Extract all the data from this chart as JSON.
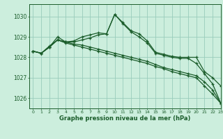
{
  "title": "Graphe pression niveau de la mer (hPa)",
  "bg_color": "#cceedd",
  "grid_color": "#99ccbb",
  "line_color": "#1a5c2a",
  "xlim": [
    -0.5,
    23
  ],
  "ylim": [
    1025.5,
    1030.6
  ],
  "yticks": [
    1026,
    1027,
    1028,
    1029,
    1030
  ],
  "xticks": [
    0,
    1,
    2,
    3,
    4,
    5,
    6,
    7,
    8,
    9,
    10,
    11,
    12,
    13,
    14,
    15,
    16,
    17,
    18,
    19,
    20,
    21,
    22,
    23
  ],
  "series": [
    [
      1028.3,
      1028.2,
      1028.5,
      1029.0,
      1028.75,
      1028.8,
      1029.0,
      1029.1,
      1029.2,
      1029.15,
      1030.1,
      1029.7,
      1029.3,
      1029.15,
      1028.8,
      1028.25,
      1028.15,
      1028.05,
      1028.0,
      1028.0,
      1028.0,
      1027.3,
      1027.0,
      1026.6
    ],
    [
      1028.3,
      1028.2,
      1028.55,
      1028.85,
      1028.75,
      1028.75,
      1028.85,
      1028.95,
      1029.1,
      1029.15,
      1030.1,
      1029.65,
      1029.25,
      1029.0,
      1028.7,
      1028.2,
      1028.1,
      1028.0,
      1027.95,
      1027.95,
      1027.7,
      1027.2,
      1026.7,
      1025.75
    ],
    [
      1028.3,
      1028.2,
      1028.5,
      1028.85,
      1028.75,
      1028.65,
      1028.6,
      1028.5,
      1028.4,
      1028.3,
      1028.2,
      1028.1,
      1028.0,
      1027.9,
      1027.8,
      1027.65,
      1027.5,
      1027.4,
      1027.3,
      1027.2,
      1027.1,
      1026.8,
      1026.4,
      1025.75
    ],
    [
      1028.3,
      1028.2,
      1028.5,
      1028.85,
      1028.7,
      1028.6,
      1028.5,
      1028.4,
      1028.3,
      1028.2,
      1028.1,
      1028.0,
      1027.9,
      1027.8,
      1027.7,
      1027.55,
      1027.45,
      1027.3,
      1027.2,
      1027.1,
      1027.0,
      1026.6,
      1026.2,
      1025.75
    ]
  ]
}
